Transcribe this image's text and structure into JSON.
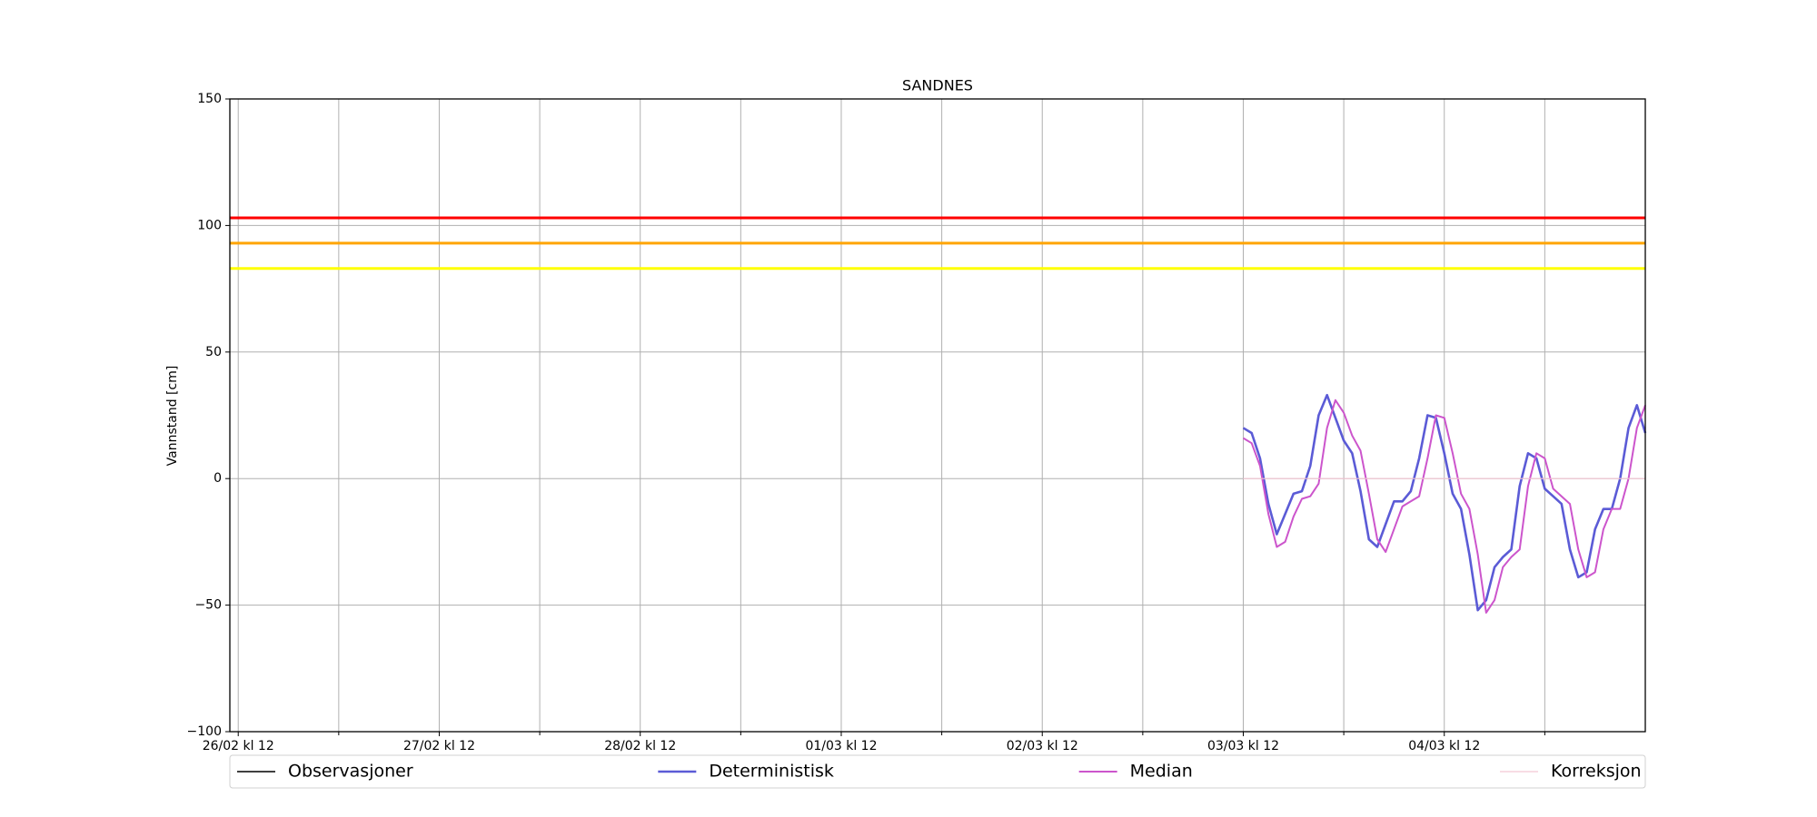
{
  "chart_data": {
    "type": "line",
    "title": "SANDNES",
    "y_label": "Vannstand [cm]",
    "grid": true,
    "legend": "bottom",
    "xlim": [
      -1,
      168
    ],
    "xticks": [
      {
        "value": 0,
        "label": "26/02 kl 12"
      },
      {
        "value": 24,
        "label": "27/02 kl 12"
      },
      {
        "value": 48,
        "label": "28/02 kl 12"
      },
      {
        "value": 72,
        "label": "01/03 kl 12"
      },
      {
        "value": 96,
        "label": "02/03 kl 12"
      },
      {
        "value": 120,
        "label": "03/03 kl 12"
      },
      {
        "value": 144,
        "label": "04/03 kl 12"
      }
    ],
    "xminorticks": [
      12,
      36,
      60,
      84,
      108,
      132,
      156
    ],
    "ylim": [
      -100,
      150
    ],
    "yticks": [
      {
        "value": -100,
        "label": "−100"
      },
      {
        "value": -50,
        "label": "−50"
      },
      0,
      50,
      100,
      150
    ],
    "thresholds": [
      {
        "value": 103,
        "color": "#ff0000"
      },
      {
        "value": 93,
        "color": "#ffa500"
      },
      {
        "value": 83,
        "color": "#ffff00"
      }
    ],
    "x": [
      120,
      121,
      122,
      123,
      124,
      125,
      126,
      127,
      128,
      129,
      130,
      131,
      132,
      133,
      134,
      135,
      136,
      137,
      138,
      139,
      140,
      141,
      142,
      143,
      144,
      145,
      146,
      147,
      148,
      149,
      150,
      151,
      152,
      153,
      154,
      155,
      156,
      157,
      158,
      159,
      160,
      161,
      162,
      163,
      164,
      165,
      166,
      167,
      168
    ],
    "series": [
      {
        "name": "Observasjoner",
        "color": "#000000",
        "width": 1.5,
        "values": [
          null,
          null,
          null,
          null,
          null,
          null,
          null,
          null,
          null,
          null,
          null,
          null,
          null,
          null,
          null,
          null,
          null,
          null,
          null,
          null,
          null,
          null,
          null,
          null,
          null,
          null,
          null,
          null,
          null,
          null,
          null,
          null,
          null,
          null,
          null,
          null,
          null,
          null,
          null,
          null,
          null,
          null,
          null,
          null,
          null,
          null,
          null,
          null,
          null
        ]
      },
      {
        "name": "Deterministisk",
        "color": "#5b5bd6",
        "width": 2.6,
        "values": [
          20,
          18,
          8,
          -10,
          -22,
          -14,
          -6,
          -5,
          5,
          25,
          33,
          24,
          15,
          10,
          -5,
          -24,
          -27,
          -18,
          -9,
          -9,
          -5,
          8,
          25,
          24,
          10,
          -6,
          -12,
          -30,
          -52,
          -48,
          -35,
          -31,
          -28,
          -3,
          10,
          8,
          -4,
          -7,
          -10,
          -28,
          -39,
          -37,
          -20,
          -12,
          -12,
          0,
          20,
          29,
          18
        ]
      },
      {
        "name": "Median",
        "color": "#cc55cc",
        "width": 2,
        "values": [
          16,
          14,
          5,
          -14,
          -27,
          -25,
          -15,
          -8,
          -7,
          -2,
          20,
          31,
          26,
          17,
          11,
          -6,
          -24,
          -29,
          -20,
          -11,
          -9,
          -7,
          8,
          25,
          24,
          10,
          -6,
          -12,
          -30,
          -53,
          -48,
          -35,
          -31,
          -28,
          -3,
          10,
          8,
          -4,
          -7,
          -10,
          -28,
          -39,
          -37,
          -20,
          -12,
          -12,
          0,
          20,
          29
        ]
      },
      {
        "name": "Korreksjon",
        "color": "#f4c6d4",
        "width": 1.2,
        "values": [
          0,
          0,
          0,
          0,
          0,
          0,
          0,
          0,
          0,
          0,
          0,
          0,
          0,
          0,
          0,
          0,
          0,
          0,
          0,
          0,
          0,
          0,
          0,
          0,
          0,
          0,
          0,
          0,
          0,
          0,
          0,
          0,
          0,
          0,
          0,
          0,
          0,
          0,
          0,
          0,
          0,
          0,
          0,
          0,
          0,
          0,
          0,
          0,
          0
        ]
      }
    ]
  }
}
